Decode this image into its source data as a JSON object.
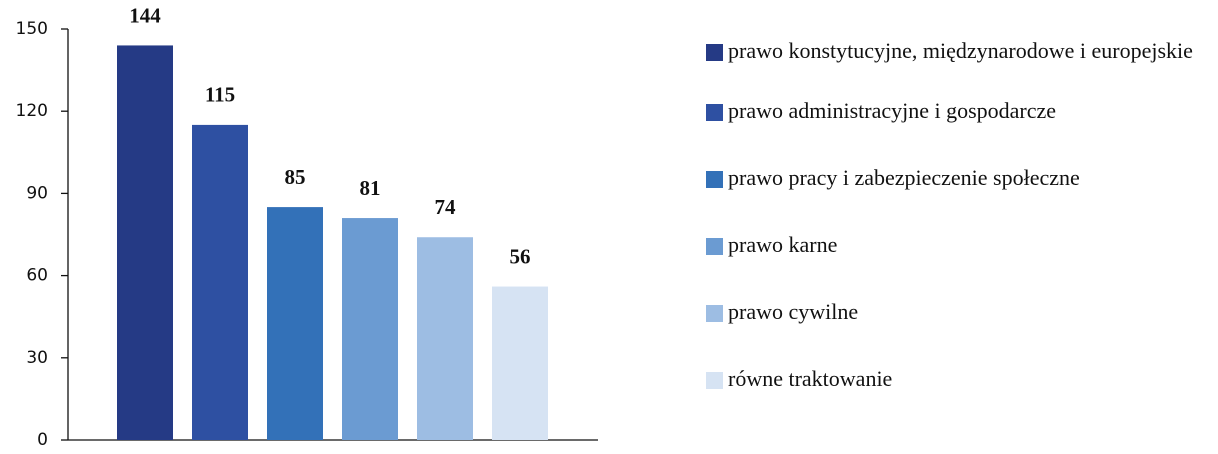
{
  "chart_data": {
    "type": "bar",
    "categories": [
      "prawo konstytucyjne, międzynarodowe i europejskie",
      "prawo administracyjne i gospodarcze",
      "prawo pracy i zabezpieczenie społeczne",
      "prawo karne",
      "prawo cywilne",
      "równe traktowanie"
    ],
    "values": [
      144,
      115,
      85,
      81,
      74,
      56
    ],
    "colors": [
      "#253a85",
      "#2e50a2",
      "#3371b8",
      "#6b9bd2",
      "#9dbde3",
      "#d6e3f3"
    ],
    "ylim": [
      0,
      150
    ],
    "yticks": [
      0,
      30,
      60,
      90,
      120,
      150
    ],
    "legend": "right"
  }
}
